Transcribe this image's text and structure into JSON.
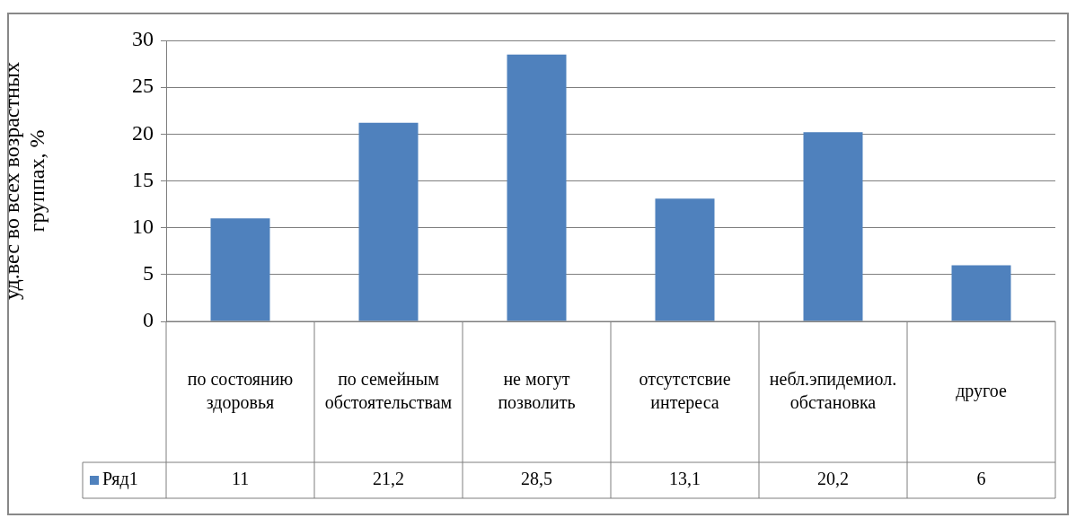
{
  "chart_data": {
    "type": "bar",
    "ylabel": "уд.вес во всех возрастных группах, %",
    "categories": [
      "по состоянию здоровья",
      "по семейным обстоятельствам",
      "не могут позволить",
      "отсутстсвие интереса",
      "небл.эпидемиол.обстановка",
      "другое"
    ],
    "series": [
      {
        "name": "Ряд1",
        "color": "#4f81bd",
        "values": [
          11,
          21.2,
          28.5,
          13.1,
          20.2,
          6
        ],
        "value_labels": [
          "11",
          "21,2",
          "28,5",
          "13,1",
          "20,2",
          "6"
        ]
      }
    ],
    "ylim": [
      0,
      30
    ],
    "yticks": [
      0,
      5,
      10,
      15,
      20,
      25,
      30
    ],
    "grid": "y",
    "legend": "bottom"
  }
}
